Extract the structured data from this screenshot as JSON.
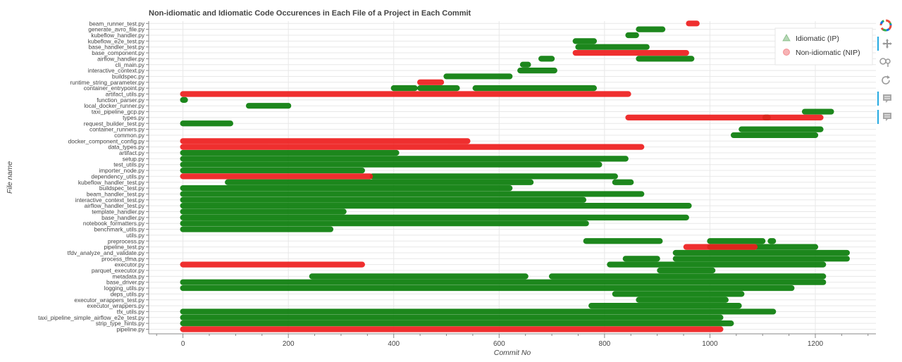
{
  "chart_data": {
    "type": "scatter",
    "title": "Non-idiomatic and Idiomatic Code Occurences in Each File of a Project in Each Commit",
    "xlabel": "Commit No",
    "ylabel": "File name",
    "xlim": [
      -65,
      1315
    ],
    "xticks": [
      0,
      200,
      400,
      600,
      800,
      1000,
      1200
    ],
    "grid": true,
    "legend_position": "top-right",
    "legend": [
      {
        "label": "Idiomatic (IP)",
        "color": "#2e8b2e",
        "marker": "triangle"
      },
      {
        "label": "Non-idiomatic (NIP)",
        "color": "#e8242a",
        "marker": "circle"
      }
    ],
    "colors": {
      "ip": "#0a7d0a",
      "nip": "#ee1d1d"
    },
    "categories": [
      "beam_runner_test.py",
      "generate_avro_file.py",
      "kubeflow_handler.py",
      "kubeflow_e2e_test.py",
      "base_handler_test.py",
      "base_component.py",
      "airflow_handler.py",
      "cli_main.py",
      "interactive_context.py",
      "buildspec.py",
      "runtime_string_parameter.py",
      "container_entrypoint.py",
      "artifact_utils.py",
      "function_parser.py",
      "local_docker_runner.py",
      "taxi_pipeline_gcp.py",
      "types.py",
      "request_builder_test.py",
      "container_runners.py",
      "common.py",
      "docker_component_config.py",
      "data_types.py",
      "artifact.py",
      "setup.py",
      "test_utils.py",
      "importer_node.py",
      "dependency_utils.py",
      "kubeflow_handler_test.py",
      "buildspec_test.py",
      "beam_handler_test.py",
      "interactive_context_test.py",
      "airflow_handler_test.py",
      "template_handler.py",
      "base_handler.py",
      "notebook_formatters.py",
      "benchmark_utils.py",
      "utils.py",
      "preprocess.py",
      "pipeline_test.py",
      "tfdv_analyze_and_validate.py",
      "process_tfma.py",
      "executor.py",
      "parquet_executor.py",
      "metadata.py",
      "base_driver.py",
      "logging_utils.py",
      "deps_utils.py",
      "executor_wrappers_test.py",
      "executor_wrappers.py",
      "tfx_utils.py",
      "taxi_pipeline_simple_airflow_e2e_test.py",
      "strip_type_hints.py",
      "pipeline.py"
    ],
    "series": [
      {
        "name": "Idiomatic (IP)",
        "segments": [
          {
            "file": "generate_avro_file.py",
            "x": [
              865,
              910
            ]
          },
          {
            "file": "kubeflow_handler.py",
            "x": [
              845,
              860
            ]
          },
          {
            "file": "kubeflow_e2e_test.py",
            "x": [
              745,
              780
            ]
          },
          {
            "file": "base_handler_test.py",
            "x": [
              750,
              880
            ]
          },
          {
            "file": "airflow_handler.py",
            "x": [
              680,
              700
            ]
          },
          {
            "file": "airflow_handler.py",
            "x": [
              865,
              965
            ]
          },
          {
            "file": "cli_main.py",
            "x": [
              645,
              655
            ]
          },
          {
            "file": "interactive_context.py",
            "x": [
              640,
              705
            ]
          },
          {
            "file": "buildspec.py",
            "x": [
              500,
              620
            ]
          },
          {
            "file": "container_entrypoint.py",
            "x": [
              400,
              440
            ]
          },
          {
            "file": "container_entrypoint.py",
            "x": [
              450,
              520
            ]
          },
          {
            "file": "container_entrypoint.py",
            "x": [
              555,
              780
            ]
          },
          {
            "file": "function_parser.py",
            "x": [
              0,
              4
            ]
          },
          {
            "file": "local_docker_runner.py",
            "x": [
              125,
              200
            ]
          },
          {
            "file": "taxi_pipeline_gcp.py",
            "x": [
              1180,
              1230
            ]
          },
          {
            "file": "types.py",
            "x": [
              1105,
              1110
            ]
          },
          {
            "file": "request_builder_test.py",
            "x": [
              0,
              90
            ]
          },
          {
            "file": "container_runners.py",
            "x": [
              1060,
              1210
            ]
          },
          {
            "file": "common.py",
            "x": [
              1045,
              1200
            ]
          },
          {
            "file": "artifact.py",
            "x": [
              0,
              405
            ]
          },
          {
            "file": "setup.py",
            "x": [
              0,
              840
            ]
          },
          {
            "file": "test_utils.py",
            "x": [
              0,
              790
            ]
          },
          {
            "file": "importer_node.py",
            "x": [
              0,
              340
            ]
          },
          {
            "file": "dependency_utils.py",
            "x": [
              360,
              820
            ]
          },
          {
            "file": "kubeflow_handler_test.py",
            "x": [
              85,
              660
            ]
          },
          {
            "file": "kubeflow_handler_test.py",
            "x": [
              820,
              850
            ]
          },
          {
            "file": "buildspec_test.py",
            "x": [
              0,
              620
            ]
          },
          {
            "file": "beam_handler_test.py",
            "x": [
              0,
              870
            ]
          },
          {
            "file": "interactive_context_test.py",
            "x": [
              0,
              760
            ]
          },
          {
            "file": "airflow_handler_test.py",
            "x": [
              0,
              960
            ]
          },
          {
            "file": "template_handler.py",
            "x": [
              0,
              305
            ]
          },
          {
            "file": "base_handler.py",
            "x": [
              0,
              955
            ]
          },
          {
            "file": "notebook_formatters.py",
            "x": [
              0,
              765
            ]
          },
          {
            "file": "benchmark_utils.py",
            "x": [
              0,
              280
            ]
          },
          {
            "file": "preprocess.py",
            "x": [
              765,
              905
            ]
          },
          {
            "file": "preprocess.py",
            "x": [
              1000,
              1100
            ]
          },
          {
            "file": "preprocess.py",
            "x": [
              1115,
              1120
            ]
          },
          {
            "file": "pipeline_test.py",
            "x": [
              1000,
              1200
            ]
          },
          {
            "file": "tfdv_analyze_and_validate.py",
            "x": [
              935,
              1260
            ]
          },
          {
            "file": "process_tfma.py",
            "x": [
              840,
              900
            ]
          },
          {
            "file": "process_tfma.py",
            "x": [
              935,
              1260
            ]
          },
          {
            "file": "executor.py",
            "x": [
              810,
              1215
            ]
          },
          {
            "file": "parquet_executor.py",
            "x": [
              905,
              1005
            ]
          },
          {
            "file": "metadata.py",
            "x": [
              245,
              650
            ]
          },
          {
            "file": "metadata.py",
            "x": [
              700,
              1215
            ]
          },
          {
            "file": "base_driver.py",
            "x": [
              0,
              1215
            ]
          },
          {
            "file": "logging_utils.py",
            "x": [
              0,
              1155
            ]
          },
          {
            "file": "deps_utils.py",
            "x": [
              820,
              1060
            ]
          },
          {
            "file": "executor_wrappers_test.py",
            "x": [
              865,
              1030
            ]
          },
          {
            "file": "executor_wrappers.py",
            "x": [
              775,
              1055
            ]
          },
          {
            "file": "tfx_utils.py",
            "x": [
              0,
              1120
            ]
          },
          {
            "file": "taxi_pipeline_simple_airflow_e2e_test.py",
            "x": [
              0,
              1020
            ]
          },
          {
            "file": "strip_type_hints.py",
            "x": [
              0,
              1040
            ]
          }
        ]
      },
      {
        "name": "Non-idiomatic (NIP)",
        "segments": [
          {
            "file": "beam_runner_test.py",
            "x": [
              960,
              975
            ]
          },
          {
            "file": "base_component.py",
            "x": [
              745,
              955
            ]
          },
          {
            "file": "runtime_string_parameter.py",
            "x": [
              450,
              490
            ]
          },
          {
            "file": "artifact_utils.py",
            "x": [
              0,
              845
            ]
          },
          {
            "file": "types.py",
            "x": [
              845,
              1210
            ]
          },
          {
            "file": "docker_component_config.py",
            "x": [
              0,
              540
            ]
          },
          {
            "file": "data_types.py",
            "x": [
              0,
              870
            ]
          },
          {
            "file": "dependency_utils.py",
            "x": [
              0,
              355
            ]
          },
          {
            "file": "pipeline_test.py",
            "x": [
              955,
              1085
            ]
          },
          {
            "file": "executor.py",
            "x": [
              0,
              340
            ]
          },
          {
            "file": "pipeline.py",
            "x": [
              0,
              1020
            ]
          }
        ]
      }
    ]
  },
  "toolbar": [
    "logo-icon",
    "pan-icon",
    "box-zoom-icon",
    "reset-icon",
    "hover-icon",
    "hover-icon"
  ]
}
